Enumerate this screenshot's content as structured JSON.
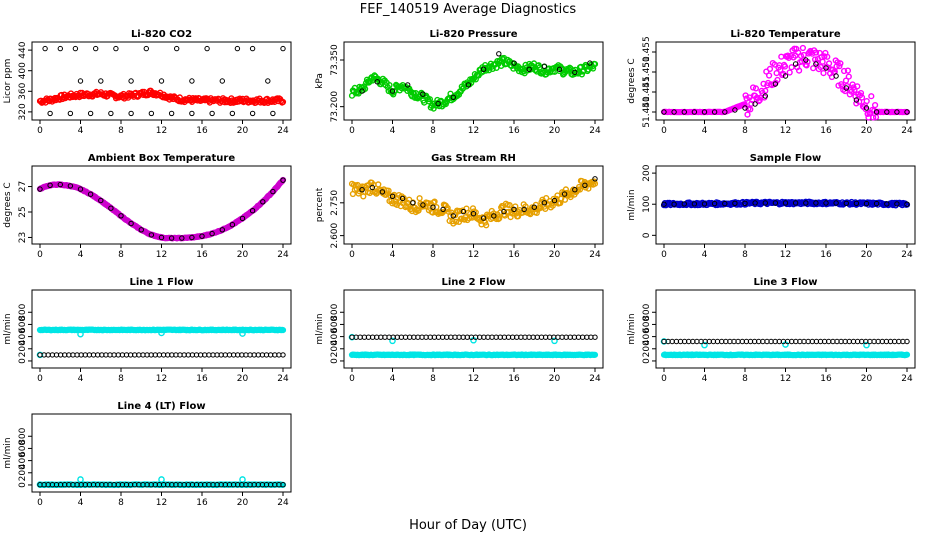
{
  "title": "FEF_140519  Average Diagnostics",
  "xlabel": "Hour of Day (UTC)",
  "chart_data": [
    {
      "id": "p1",
      "type": "scatter",
      "title": "Li-820 CO2",
      "ylabel": "Licor ppm",
      "xlim": [
        0,
        24
      ],
      "ylim": [
        312,
        448
      ],
      "xticks": [
        0,
        4,
        8,
        12,
        16,
        20,
        24
      ],
      "yticks": [
        320,
        360,
        400,
        440
      ],
      "series": [
        {
          "name": "dense",
          "color": "#ff0000",
          "x": [
            0,
            1,
            2,
            3,
            4,
            5,
            6,
            7,
            8,
            9,
            10,
            11,
            12,
            13,
            14,
            15,
            16,
            17,
            18,
            19,
            20,
            21,
            22,
            23,
            24
          ],
          "y": [
            341,
            343,
            348,
            351,
            353,
            354,
            355,
            352,
            350,
            352,
            355,
            358,
            354,
            347,
            344,
            343,
            342,
            342,
            342,
            342,
            342,
            342,
            342,
            342,
            342
          ]
        },
        {
          "name": "averages",
          "color": "#000000",
          "x": [
            0.5,
            2,
            3.5,
            4,
            5.5,
            6,
            7.5,
            9,
            10.5,
            12,
            13.5,
            15,
            16.5,
            18,
            19.5,
            21,
            22.5,
            24
          ],
          "y": [
            443,
            443,
            443,
            380,
            443,
            380,
            443,
            380,
            443,
            380,
            443,
            380,
            443,
            380,
            443,
            443,
            380,
            443
          ]
        }
      ]
    },
    {
      "id": "p2",
      "type": "scatter",
      "title": "Li-820 Pressure",
      "ylabel": "kPa",
      "xlim": [
        0,
        24
      ],
      "ylim": [
        73.17,
        73.395
      ],
      "xticks": [
        0,
        4,
        8,
        12,
        16,
        20,
        24
      ],
      "yticks": [
        73.2,
        73.35
      ],
      "series": [
        {
          "name": "dense",
          "color": "#00cc00",
          "x": [
            0,
            1,
            2,
            3,
            4,
            5,
            6,
            7,
            8,
            9,
            10,
            11,
            12,
            13,
            14,
            15,
            16,
            17,
            18,
            19,
            20,
            21,
            22,
            23,
            24
          ],
          "y": [
            73.245,
            73.255,
            73.295,
            73.28,
            73.25,
            73.27,
            73.245,
            73.23,
            73.205,
            73.215,
            73.235,
            73.26,
            73.29,
            73.325,
            73.335,
            73.345,
            73.33,
            73.32,
            73.33,
            73.315,
            73.325,
            73.315,
            73.31,
            73.32,
            73.33
          ]
        },
        {
          "name": "averages",
          "color": "#000000",
          "x": [
            1,
            2.5,
            4,
            5.5,
            7,
            8.5,
            10,
            11.5,
            13,
            14.5,
            16,
            17.5,
            19,
            20.5,
            22,
            23.5
          ],
          "y": [
            73.25,
            73.28,
            73.25,
            73.27,
            73.24,
            73.21,
            73.23,
            73.27,
            73.32,
            73.37,
            73.34,
            73.32,
            73.33,
            73.32,
            73.31,
            73.34
          ]
        }
      ]
    },
    {
      "id": "p3",
      "type": "scatter",
      "title": "Li-820 Temperature",
      "ylabel": "degrees C",
      "xlim": [
        0,
        24
      ],
      "ylim": [
        51.439,
        51.4565
      ],
      "xticks": [
        0,
        4,
        8,
        12,
        16,
        20,
        24
      ],
      "yticks": [
        51.44,
        51.445,
        51.45,
        51.455
      ],
      "series": [
        {
          "name": "dense",
          "color": "#ff00ff",
          "x": [
            0,
            2,
            4,
            6,
            7,
            8,
            9,
            10,
            11,
            12,
            13,
            14,
            15,
            16,
            17,
            18,
            19,
            20,
            21,
            22,
            24
          ],
          "y": [
            51.44,
            51.44,
            51.44,
            51.44,
            51.441,
            51.442,
            51.444,
            51.447,
            51.45,
            51.452,
            51.453,
            51.454,
            51.453,
            51.452,
            51.45,
            51.448,
            51.445,
            51.442,
            51.44,
            51.44,
            51.44
          ]
        },
        {
          "name": "averages",
          "color": "#000000",
          "x": [
            0,
            1,
            2,
            3,
            4,
            5,
            6,
            7,
            8,
            9,
            10,
            11,
            12,
            13,
            14,
            15,
            16,
            17,
            18,
            19,
            20,
            21,
            22,
            23,
            24
          ],
          "y": [
            51.44,
            51.44,
            51.44,
            51.44,
            51.44,
            51.44,
            51.44,
            51.4405,
            51.441,
            51.442,
            51.444,
            51.447,
            51.449,
            51.452,
            51.453,
            51.452,
            51.451,
            51.449,
            51.446,
            51.443,
            51.441,
            51.44,
            51.44,
            51.44,
            51.44
          ]
        }
      ]
    },
    {
      "id": "p4",
      "type": "scatter",
      "title": "Ambient Box Temperature",
      "ylabel": "degrees C",
      "xlim": [
        0,
        24
      ],
      "ylim": [
        22.8,
        28.3
      ],
      "xticks": [
        0,
        4,
        8,
        12,
        16,
        20,
        24
      ],
      "yticks": [
        23,
        25,
        27
      ],
      "series": [
        {
          "name": "dense",
          "color": "#cc00cc",
          "x": [
            0,
            0.5,
            1,
            1.5,
            2,
            2.5,
            3,
            3.5,
            4,
            5,
            6,
            7,
            8,
            9,
            10,
            11,
            12,
            12.5,
            13,
            14,
            15,
            16,
            17,
            18,
            19,
            20,
            21,
            22,
            23,
            24
          ],
          "y": [
            26.8,
            27.0,
            27.1,
            27.15,
            27.15,
            27.1,
            27.05,
            26.95,
            26.8,
            26.4,
            25.9,
            25.3,
            24.7,
            24.1,
            23.6,
            23.2,
            23.0,
            22.95,
            22.95,
            22.95,
            23.0,
            23.1,
            23.3,
            23.6,
            24.0,
            24.5,
            25.1,
            25.8,
            26.6,
            27.5
          ]
        },
        {
          "name": "averages",
          "color": "#000000",
          "x": [
            0,
            1,
            2,
            3,
            4,
            5,
            6,
            7,
            8,
            9,
            10,
            11,
            12,
            13,
            14,
            15,
            16,
            17,
            18,
            19,
            20,
            21,
            22,
            23,
            24
          ],
          "y": [
            26.8,
            27.1,
            27.15,
            27.05,
            26.8,
            26.4,
            25.9,
            25.3,
            24.7,
            24.1,
            23.6,
            23.2,
            23.0,
            22.95,
            22.95,
            23.0,
            23.1,
            23.3,
            23.6,
            24.0,
            24.5,
            25.1,
            25.8,
            26.6,
            27.5
          ]
        }
      ]
    },
    {
      "id": "p5",
      "type": "scatter",
      "title": "Gas Stream RH",
      "ylabel": "percent",
      "xlim": [
        0,
        24
      ],
      "ylim": [
        2.58,
        2.9
      ],
      "xticks": [
        0,
        4,
        8,
        12,
        16,
        20,
        24
      ],
      "yticks": [
        2.6,
        2.75
      ],
      "series": [
        {
          "name": "dense",
          "color": "#e6a000",
          "x": [
            0,
            1,
            2,
            3,
            4,
            5,
            6,
            7,
            8,
            9,
            10,
            11,
            12,
            13,
            14,
            15,
            16,
            17,
            18,
            19,
            20,
            21,
            22,
            23,
            24
          ],
          "y": [
            2.82,
            2.8,
            2.83,
            2.79,
            2.77,
            2.76,
            2.73,
            2.75,
            2.73,
            2.72,
            2.68,
            2.7,
            2.7,
            2.67,
            2.69,
            2.72,
            2.71,
            2.72,
            2.72,
            2.74,
            2.76,
            2.78,
            2.81,
            2.83,
            2.85
          ]
        },
        {
          "name": "averages",
          "color": "#000000",
          "x": [
            1,
            2,
            3,
            4,
            5,
            6,
            7,
            8,
            9,
            10,
            11,
            12,
            13,
            14,
            15,
            16,
            17,
            18,
            19,
            20,
            21,
            22,
            23,
            24
          ],
          "y": [
            2.81,
            2.82,
            2.8,
            2.78,
            2.77,
            2.75,
            2.74,
            2.73,
            2.72,
            2.69,
            2.71,
            2.7,
            2.68,
            2.69,
            2.71,
            2.72,
            2.72,
            2.73,
            2.75,
            2.76,
            2.79,
            2.81,
            2.83,
            2.86
          ]
        }
      ]
    },
    {
      "id": "p6",
      "type": "scatter",
      "title": "Sample Flow",
      "ylabel": "ml/min",
      "xlim": [
        0,
        24
      ],
      "ylim": [
        -15,
        210
      ],
      "xticks": [
        0,
        4,
        8,
        12,
        16,
        20,
        24
      ],
      "yticks": [
        0,
        100,
        200
      ],
      "series": [
        {
          "name": "dense",
          "color": "#0000cc",
          "x": [
            0,
            2,
            4,
            6,
            8,
            10,
            12,
            14,
            16,
            18,
            20,
            22,
            24
          ],
          "y": [
            100,
            101,
            101,
            102,
            103,
            104,
            104,
            104,
            104,
            103,
            102,
            101,
            100
          ]
        },
        {
          "name": "averages",
          "color": "#000000",
          "x": [
            0,
            1,
            2,
            3,
            4,
            5,
            6,
            7,
            8,
            9,
            10,
            11,
            12,
            13,
            14,
            15,
            16,
            17,
            18,
            19,
            20,
            21,
            22,
            23,
            24
          ],
          "y": [
            100,
            100,
            101,
            101,
            101,
            102,
            102,
            103,
            103,
            104,
            104,
            104,
            104,
            104,
            104,
            104,
            104,
            104,
            103,
            103,
            102,
            102,
            101,
            101,
            100
          ]
        }
      ]
    },
    {
      "id": "p7",
      "type": "scatter",
      "title": "Line 1 Flow",
      "ylabel": "ml/min",
      "xlim": [
        0,
        24
      ],
      "ylim": [
        -50,
        1100
      ],
      "xticks": [
        0,
        4,
        8,
        12,
        16,
        20,
        24
      ],
      "yticks": [
        0,
        200,
        400,
        600,
        800
      ],
      "series": [
        {
          "name": "dense",
          "color": "#00e5e5",
          "x": [
            0,
            24
          ],
          "y": [
            510,
            510
          ],
          "outliers": {
            "x": [
              0,
              4,
              12,
              20
            ],
            "y": [
              100,
              440,
              460,
              450
            ]
          }
        },
        {
          "name": "averages",
          "color": "#000000",
          "x": [
            0,
            24
          ],
          "y": [
            100,
            100
          ]
        }
      ]
    },
    {
      "id": "p8",
      "type": "scatter",
      "title": "Line 2 Flow",
      "ylabel": "ml/min",
      "xlim": [
        0,
        24
      ],
      "ylim": [
        -50,
        1100
      ],
      "xticks": [
        0,
        4,
        8,
        12,
        16,
        20,
        24
      ],
      "yticks": [
        0,
        200,
        400,
        600,
        800
      ],
      "series": [
        {
          "name": "dense",
          "color": "#00e5e5",
          "x": [
            0,
            24
          ],
          "y": [
            100,
            100
          ],
          "outliers": {
            "x": [
              0,
              4,
              12,
              20
            ],
            "y": [
              390,
              330,
              340,
              330
            ]
          }
        },
        {
          "name": "averages",
          "color": "#000000",
          "x": [
            0,
            24
          ],
          "y": [
            390,
            390
          ]
        }
      ]
    },
    {
      "id": "p9",
      "type": "scatter",
      "title": "Line 3 Flow",
      "ylabel": "ml/min",
      "xlim": [
        0,
        24
      ],
      "ylim": [
        -50,
        1100
      ],
      "xticks": [
        0,
        4,
        8,
        12,
        16,
        20,
        24
      ],
      "yticks": [
        0,
        200,
        400,
        600,
        800
      ],
      "series": [
        {
          "name": "dense",
          "color": "#00e5e5",
          "x": [
            0,
            24
          ],
          "y": [
            100,
            100
          ],
          "outliers": {
            "x": [
              0,
              4,
              12,
              20
            ],
            "y": [
              320,
              260,
              270,
              260
            ]
          }
        },
        {
          "name": "averages",
          "color": "#000000",
          "x": [
            0,
            24
          ],
          "y": [
            320,
            320
          ]
        }
      ]
    },
    {
      "id": "p10",
      "type": "scatter",
      "title": "Line 4 (LT) Flow",
      "ylabel": "ml/min",
      "xlim": [
        0,
        24
      ],
      "ylim": [
        -50,
        1100
      ],
      "xticks": [
        0,
        4,
        8,
        12,
        16,
        20,
        24
      ],
      "yticks": [
        0,
        200,
        400,
        600,
        800
      ],
      "series": [
        {
          "name": "dense",
          "color": "#00e5e5",
          "x": [
            0,
            24
          ],
          "y": [
            5,
            5
          ],
          "outliers": {
            "x": [
              0,
              4,
              12,
              20
            ],
            "y": [
              5,
              90,
              90,
              90
            ]
          }
        },
        {
          "name": "averages",
          "color": "#000000",
          "x": [
            0,
            24
          ],
          "y": [
            5,
            5
          ]
        }
      ]
    }
  ]
}
